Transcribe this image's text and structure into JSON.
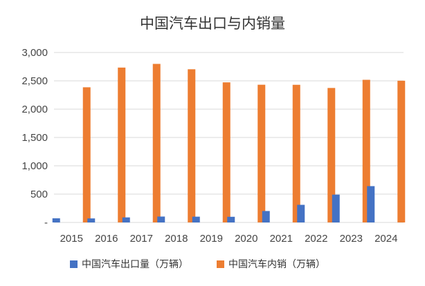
{
  "chart_data": {
    "type": "bar",
    "title": "中国汽车出口与内销量",
    "categories": [
      "2015",
      "2016",
      "2017",
      "2018",
      "2019",
      "2020",
      "2021",
      "2022",
      "2023",
      "2024"
    ],
    "series": [
      {
        "name": "中国汽车出口量（万辆）",
        "color": "#4472c4",
        "values": [
          73,
          71,
          89,
          104,
          102,
          100,
          202,
          311,
          491,
          641
        ]
      },
      {
        "name": "中国汽车内销（万辆）",
        "color": "#ed7d31",
        "values": [
          2386,
          2734,
          2799,
          2704,
          2473,
          2431,
          2430,
          2374,
          2518,
          2502
        ]
      }
    ],
    "ylim": [
      0,
      3000
    ],
    "yticks": [
      0,
      500,
      1000,
      1500,
      2000,
      2500,
      3000
    ],
    "ytick_labels": [
      "-",
      "500",
      "1,000",
      "1,500",
      "2,000",
      "2,500",
      "3,000"
    ],
    "grid": true,
    "legend_position": "bottom"
  }
}
